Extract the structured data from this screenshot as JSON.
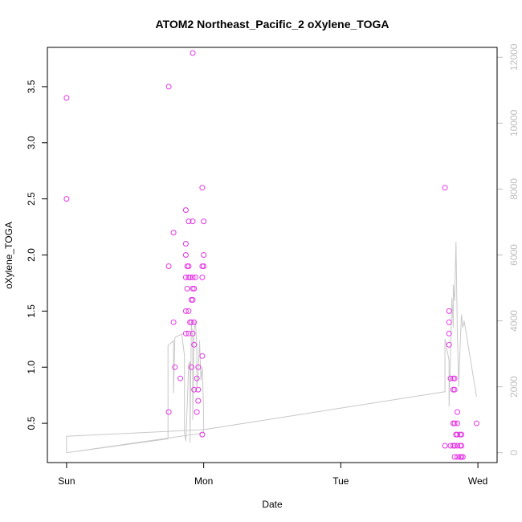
{
  "chart_data": {
    "type": "scatter",
    "title": "ATOM2 Northeast_Pacific_2 oXylene_TOGA",
    "xlabel": "Date",
    "ylabel": "oXylene_TOGA",
    "x_ticks": [
      {
        "value": 0.0,
        "label": "Sun"
      },
      {
        "value": 1.0,
        "label": "Mon"
      },
      {
        "value": 2.0,
        "label": "Tue"
      },
      {
        "value": 3.0,
        "label": "Wed"
      }
    ],
    "xlim": [
      -0.14,
      3.14
    ],
    "ylim": [
      0.15,
      3.85
    ],
    "y_ticks": [
      0.5,
      1.0,
      1.5,
      2.0,
      2.5,
      3.0,
      3.5
    ],
    "y_tick_labels": [
      "0.5",
      "1.0",
      "1.5",
      "2.0",
      "2.5",
      "3.0",
      "3.5"
    ],
    "y2lim": [
      -300,
      12300
    ],
    "y2_ticks": [
      0,
      2000,
      4000,
      6000,
      8000,
      10000,
      12000
    ],
    "y2_tick_labels": [
      "0",
      "2000",
      "4000",
      "6000",
      "8000",
      "10000",
      "12000"
    ],
    "grid": false,
    "series": [
      {
        "type": "scatter",
        "color": "#e535e5",
        "points": [
          [
            0.0,
            3.4
          ],
          [
            0.0,
            2.5
          ],
          [
            0.745,
            3.5
          ],
          [
            0.745,
            1.9
          ],
          [
            0.745,
            0.6
          ],
          [
            0.78,
            2.2
          ],
          [
            0.78,
            1.4
          ],
          [
            0.79,
            1.0
          ],
          [
            0.83,
            0.9
          ],
          [
            0.87,
            2.4
          ],
          [
            0.87,
            2.1
          ],
          [
            0.87,
            2.0
          ],
          [
            0.87,
            1.8
          ],
          [
            0.87,
            1.5
          ],
          [
            0.87,
            1.3
          ],
          [
            0.88,
            1.9
          ],
          [
            0.88,
            1.7
          ],
          [
            0.89,
            1.5
          ],
          [
            0.89,
            2.3
          ],
          [
            0.89,
            1.9
          ],
          [
            0.89,
            1.8
          ],
          [
            0.89,
            1.3
          ],
          [
            0.9,
            1.8
          ],
          [
            0.9,
            1.4
          ],
          [
            0.91,
            1.0
          ],
          [
            0.91,
            1.6
          ],
          [
            0.91,
            1.4
          ],
          [
            0.92,
            1.8
          ],
          [
            0.92,
            3.8
          ],
          [
            0.92,
            2.3
          ],
          [
            0.92,
            1.7
          ],
          [
            0.92,
            1.6
          ],
          [
            0.92,
            1.3
          ],
          [
            0.93,
            1.7
          ],
          [
            0.93,
            1.4
          ],
          [
            0.93,
            1.2
          ],
          [
            0.93,
            0.8
          ],
          [
            0.94,
            1.8
          ],
          [
            0.95,
            0.9
          ],
          [
            0.95,
            0.6
          ],
          [
            0.96,
            1.0
          ],
          [
            0.96,
            0.8
          ],
          [
            0.96,
            0.7
          ],
          [
            0.99,
            2.6
          ],
          [
            0.99,
            1.9
          ],
          [
            0.99,
            1.8
          ],
          [
            0.99,
            1.1
          ],
          [
            0.99,
            0.4
          ],
          [
            1.0,
            2.3
          ],
          [
            1.0,
            2.0
          ],
          [
            1.0,
            1.9
          ],
          [
            2.76,
            2.6
          ],
          [
            2.76,
            0.3
          ],
          [
            2.79,
            1.5
          ],
          [
            2.79,
            1.4
          ],
          [
            2.79,
            1.3
          ],
          [
            2.79,
            1.2
          ],
          [
            2.8,
            0.9
          ],
          [
            2.8,
            0.3
          ],
          [
            2.82,
            0.9
          ],
          [
            2.82,
            0.8
          ],
          [
            2.82,
            0.5
          ],
          [
            2.82,
            0.3
          ],
          [
            2.83,
            0.9
          ],
          [
            2.83,
            0.8
          ],
          [
            2.83,
            0.5
          ],
          [
            2.83,
            0.3
          ],
          [
            2.83,
            0.2
          ],
          [
            2.84,
            0.4
          ],
          [
            2.85,
            0.6
          ],
          [
            2.85,
            0.5
          ],
          [
            2.85,
            0.4
          ],
          [
            2.85,
            0.3
          ],
          [
            2.85,
            0.2
          ],
          [
            2.87,
            0.4
          ],
          [
            2.87,
            0.3
          ],
          [
            2.87,
            0.2
          ],
          [
            2.88,
            0.4
          ],
          [
            2.88,
            0.3
          ],
          [
            2.88,
            0.2
          ],
          [
            2.89,
            0.2
          ],
          [
            2.99,
            0.5
          ]
        ]
      },
      {
        "type": "line",
        "axis": "right",
        "color": "#c8c8c8",
        "points": [
          [
            0.0,
            500
          ],
          [
            0.0,
            0
          ],
          [
            1.0,
            600
          ],
          [
            1.0,
            700
          ],
          [
            0.0,
            500
          ],
          [
            0.0,
            0
          ],
          [
            0.74,
            420
          ],
          [
            0.74,
            3250
          ],
          [
            0.78,
            3400
          ],
          [
            0.78,
            1800
          ],
          [
            0.79,
            3500
          ],
          [
            0.84,
            3600
          ],
          [
            0.86,
            2950
          ],
          [
            0.86,
            600
          ],
          [
            0.87,
            350
          ],
          [
            0.88,
            1400
          ],
          [
            0.89,
            2700
          ],
          [
            0.9,
            2750
          ],
          [
            0.9,
            300
          ],
          [
            0.91,
            3900
          ],
          [
            0.92,
            3500
          ],
          [
            0.92,
            1000
          ],
          [
            0.93,
            3700
          ],
          [
            0.94,
            4000
          ],
          [
            0.95,
            3200
          ],
          [
            0.95,
            2000
          ],
          [
            0.96,
            2400
          ],
          [
            0.97,
            3400
          ],
          [
            0.98,
            2200
          ],
          [
            0.99,
            2600
          ],
          [
            1.0,
            1200
          ],
          [
            1.0,
            700
          ],
          [
            2.76,
            1850
          ],
          [
            2.76,
            3450
          ],
          [
            2.79,
            2800
          ],
          [
            2.79,
            1400
          ],
          [
            2.8,
            3000
          ],
          [
            2.81,
            4700
          ],
          [
            2.82,
            3800
          ],
          [
            2.82,
            5100
          ],
          [
            2.83,
            4600
          ],
          [
            2.84,
            6400
          ],
          [
            2.85,
            3600
          ],
          [
            2.86,
            2000
          ],
          [
            2.87,
            3200
          ],
          [
            2.88,
            4200
          ],
          [
            2.89,
            3800
          ],
          [
            2.9,
            4000
          ],
          [
            2.99,
            1700
          ]
        ]
      }
    ]
  }
}
